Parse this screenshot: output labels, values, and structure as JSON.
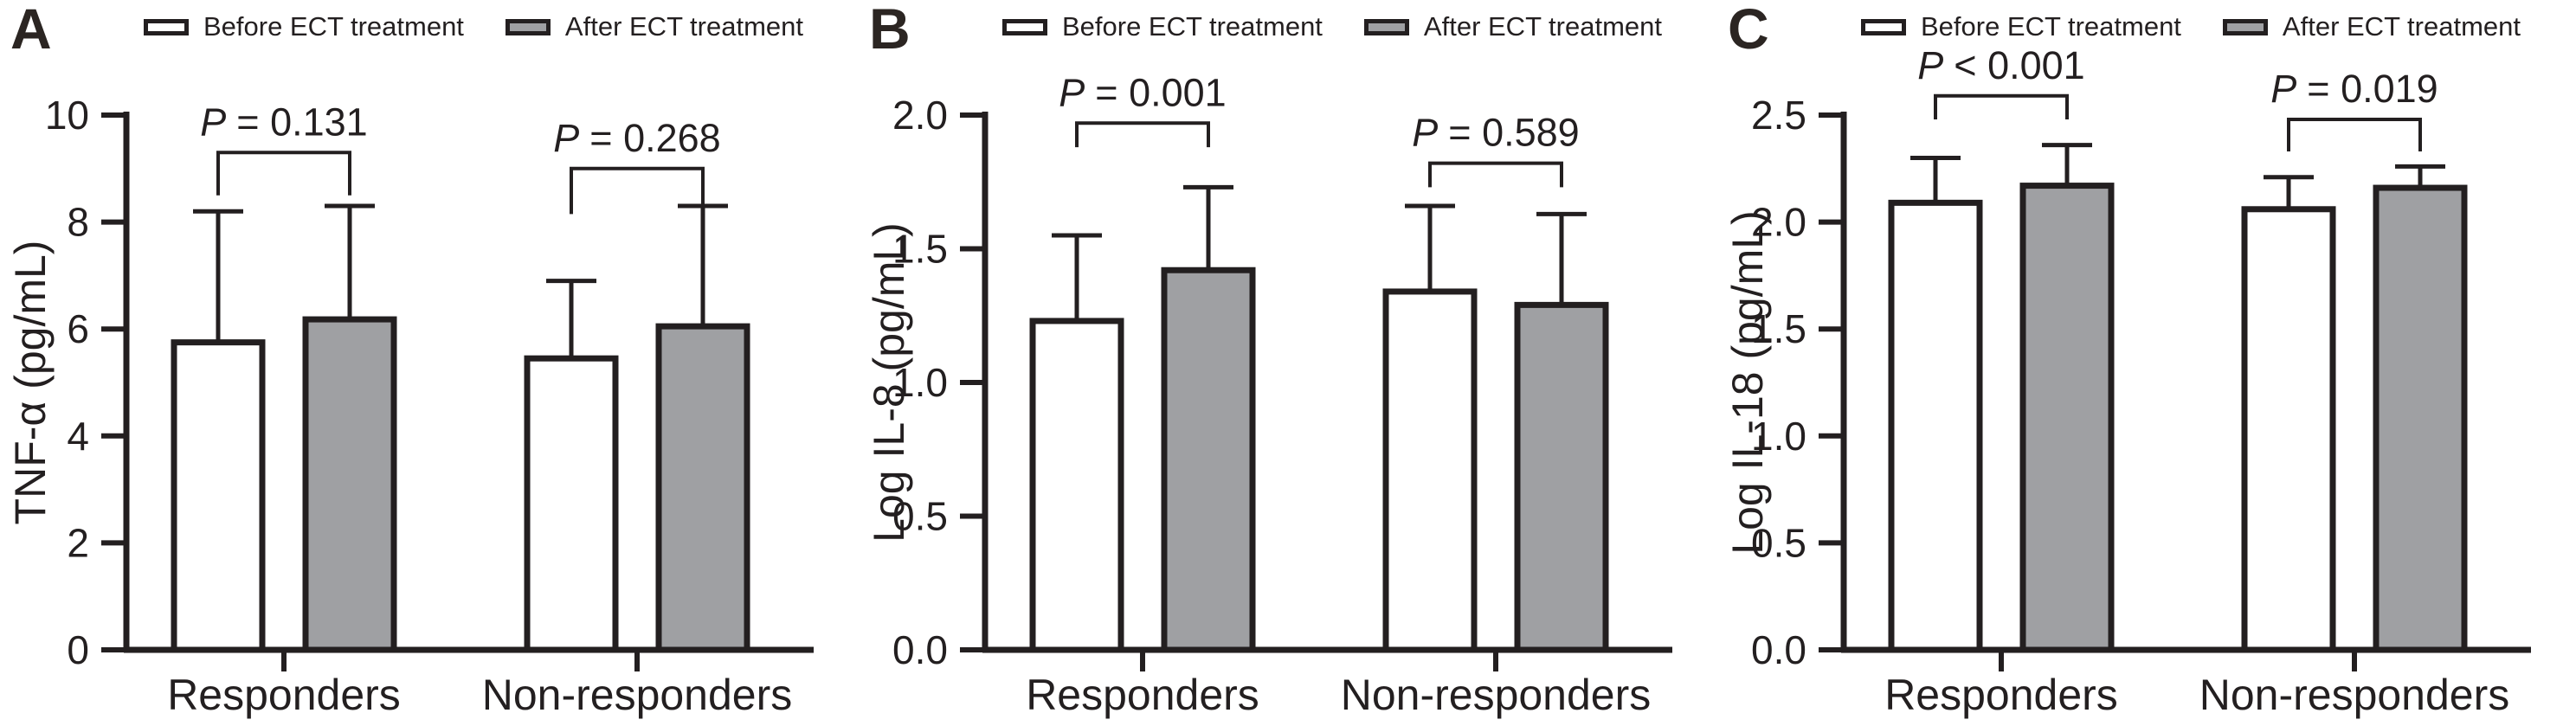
{
  "figure": {
    "legend": [
      {
        "key": "before",
        "label": "Before ECT treatment",
        "swatch_fill": "#ffffff"
      },
      {
        "key": "after",
        "label": "After ECT treatment",
        "swatch_fill": "#9fa0a3"
      }
    ],
    "colors": {
      "stroke": "#231f20",
      "text": "#231f20",
      "bar_fill_before": "#ffffff",
      "bar_fill_after": "#9fa0a3",
      "background": "#ffffff"
    }
  },
  "chart_data": [
    {
      "type": "bar",
      "panel": "A",
      "title": "",
      "xlabel": "",
      "ylabel": "TNF-α (pg/mL)",
      "ylim": [
        0,
        10
      ],
      "yticks": [
        0,
        2,
        4,
        6,
        8,
        10
      ],
      "ytick_labels": [
        "0",
        "2",
        "4",
        "6",
        "8",
        "10"
      ],
      "categories": [
        "Responders",
        "Non-responders"
      ],
      "grid": false,
      "legend_position": "top",
      "series": [
        {
          "name": "Before ECT treatment",
          "values": [
            5.75,
            5.45
          ],
          "error_top": [
            8.2,
            6.9
          ]
        },
        {
          "name": "After ECT treatment",
          "values": [
            6.18,
            6.05
          ],
          "error_top": [
            8.3,
            8.3
          ]
        }
      ],
      "significance": [
        {
          "category": "Responders",
          "label": "P = 0.131",
          "bracket_y": 9.3,
          "drop_to": 8.5
        },
        {
          "category": "Non-responders",
          "label": "P = 0.268",
          "bracket_y": 9.0,
          "drop_to": 8.15
        }
      ]
    },
    {
      "type": "bar",
      "panel": "B",
      "title": "",
      "xlabel": "",
      "ylabel": "Log IL-8 (pg/mL)",
      "ylim": [
        0,
        2.0
      ],
      "yticks": [
        0,
        0.5,
        1.0,
        1.5,
        2.0
      ],
      "ytick_labels": [
        "0.0",
        "0.5",
        "1.0",
        "1.5",
        "2.0"
      ],
      "categories": [
        "Responders",
        "Non-responders"
      ],
      "grid": false,
      "legend_position": "top",
      "series": [
        {
          "name": "Before ECT treatment",
          "values": [
            1.23,
            1.34
          ],
          "error_top": [
            1.55,
            1.66
          ]
        },
        {
          "name": "After ECT treatment",
          "values": [
            1.42,
            1.29
          ],
          "error_top": [
            1.73,
            1.63
          ]
        }
      ],
      "significance": [
        {
          "category": "Responders",
          "label": "P = 0.001",
          "bracket_y": 1.97,
          "drop_to": 1.88
        },
        {
          "category": "Non-responders",
          "label": "P = 0.589",
          "bracket_y": 1.82,
          "drop_to": 1.73
        }
      ]
    },
    {
      "type": "bar",
      "panel": "C",
      "title": "",
      "xlabel": "",
      "ylabel": "Log IL-18 (pg/mL)",
      "ylim": [
        0,
        2.5
      ],
      "yticks": [
        0,
        0.5,
        1.0,
        1.5,
        2.0,
        2.5
      ],
      "ytick_labels": [
        "0.0",
        "0.5",
        "1.0",
        "1.5",
        "2.0",
        "2.5"
      ],
      "categories": [
        "Responders",
        "Non-responders"
      ],
      "grid": false,
      "legend_position": "top",
      "series": [
        {
          "name": "Before ECT treatment",
          "values": [
            2.09,
            2.06
          ],
          "error_top": [
            2.3,
            2.21
          ]
        },
        {
          "name": "After ECT treatment",
          "values": [
            2.17,
            2.16
          ],
          "error_top": [
            2.36,
            2.26
          ]
        }
      ],
      "significance": [
        {
          "category": "Responders",
          "label": "P < 0.001",
          "bracket_y": 2.59,
          "drop_to": 2.48
        },
        {
          "category": "Non-responders",
          "label": "P = 0.019",
          "bracket_y": 2.48,
          "drop_to": 2.33
        }
      ]
    }
  ]
}
